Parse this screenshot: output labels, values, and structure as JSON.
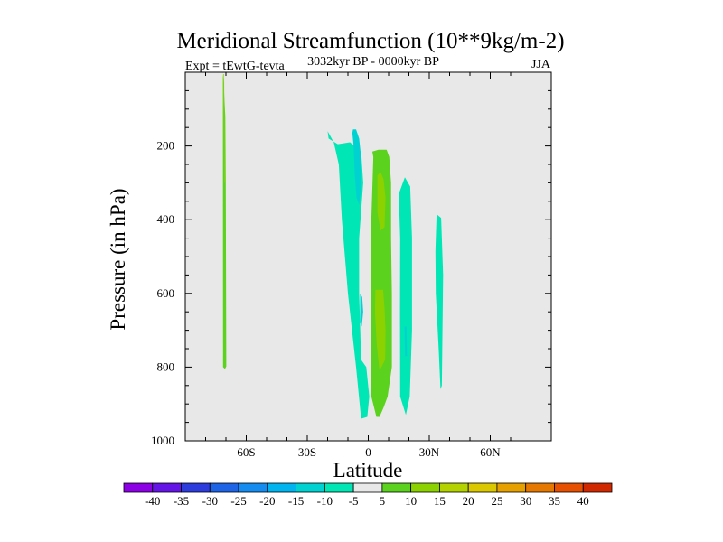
{
  "chart_data": {
    "type": "contour",
    "title": "Meridional Streamfunction (10**9kg/m-2)",
    "subtitle_left": "Expt = tEwtG-tevta",
    "subtitle_center": "3032kyr BP - 0000kyr BP",
    "subtitle_right": "JJA",
    "xlabel": "Latitude",
    "ylabel": "Pressure (in hPa)",
    "xlim": [
      -90,
      90
    ],
    "ylim": [
      1000,
      0
    ],
    "x_ticks": [
      {
        "value": -60,
        "label": "60S"
      },
      {
        "value": -30,
        "label": "30S"
      },
      {
        "value": 0,
        "label": "0"
      },
      {
        "value": 30,
        "label": "30N"
      },
      {
        "value": 60,
        "label": "60N"
      }
    ],
    "y_ticks": [
      {
        "value": 200,
        "label": "200"
      },
      {
        "value": 400,
        "label": "400"
      },
      {
        "value": 600,
        "label": "600"
      },
      {
        "value": 800,
        "label": "800"
      },
      {
        "value": 1000,
        "label": "1000"
      }
    ],
    "colorbar": {
      "labels": [
        "-40",
        "-35",
        "-30",
        "-25",
        "-20",
        "-15",
        "-10",
        "-5",
        "5",
        "10",
        "15",
        "20",
        "25",
        "30",
        "35",
        "40"
      ],
      "colors": [
        "#8c00e6",
        "#6414e6",
        "#2d3cdc",
        "#1e64e6",
        "#148cf0",
        "#00b4f0",
        "#00d2d2",
        "#00e6b4",
        "#e8e8e8",
        "#5ad21e",
        "#8cd200",
        "#b4d200",
        "#dcc800",
        "#e6a000",
        "#e67800",
        "#e65000",
        "#d22800"
      ]
    },
    "background_color": "#e8e8e8",
    "regions": [
      {
        "name": "sh-high-lat-column-outer",
        "level": "5 to 10",
        "color": "#5ad21e",
        "lat": [
          -71.5,
          -71.4,
          -70.5,
          -69.8,
          -70.1,
          -70.3,
          -71.2,
          -71.6
        ],
        "p": [
          0,
          800,
          805,
          798,
          300,
          120,
          20,
          0
        ]
      },
      {
        "name": "sh-high-lat-column-inner",
        "level": "10 to 15",
        "color": "#8cd200",
        "lat": [
          -71.2,
          -70.9,
          -70.6,
          -70.9
        ],
        "p": [
          5,
          300,
          300,
          5
        ]
      },
      {
        "name": "southern-cell-outer",
        "level": "-10 to -5",
        "color": "#00e6b4",
        "lat": [
          -20,
          -19.5,
          -15,
          -9,
          -3.5,
          -2.5,
          -4.5,
          -4.5,
          -3.5,
          -1,
          0.5,
          -0.5,
          -3.5,
          -6,
          -10,
          -13,
          -14.5,
          -17
        ],
        "p": [
          160,
          180,
          195,
          190,
          215,
          300,
          450,
          600,
          780,
          800,
          880,
          935,
          940,
          800,
          600,
          400,
          250,
          190
        ]
      },
      {
        "name": "southern-cell-inner",
        "level": "-15 to -10",
        "color": "#00d2d2",
        "lat": [
          -7.5,
          -6,
          -4.5,
          -3.5,
          -3.8,
          -4.5,
          -5.8,
          -6.6,
          -7.2,
          -7.8
        ],
        "p": [
          155,
          155,
          180,
          230,
          320,
          360,
          340,
          280,
          200,
          165
        ]
      },
      {
        "name": "southern-cell-inner-lower",
        "level": "-15 to -10",
        "color": "#00d2d2",
        "lat": [
          -4,
          -3,
          -2.5,
          -3.2,
          -4
        ],
        "p": [
          600,
          610,
          650,
          690,
          680
        ]
      },
      {
        "name": "equatorial-positive-outer",
        "level": "5 to 10",
        "color": "#5ad21e",
        "lat": [
          2,
          5,
          9,
          10.3,
          11.2,
          11.2,
          11.6,
          11.6,
          9.5,
          7.5,
          5.5,
          4,
          1.5,
          1.5,
          2.5
        ],
        "p": [
          215,
          210,
          210,
          230,
          300,
          450,
          600,
          800,
          880,
          910,
          935,
          935,
          880,
          400,
          230
        ]
      },
      {
        "name": "equatorial-positive-inner-upper",
        "level": "10 to 15",
        "color": "#8cd200",
        "lat": [
          4.5,
          6,
          7.5,
          8.5,
          8,
          6,
          4.5
        ],
        "p": [
          280,
          270,
          290,
          340,
          420,
          430,
          380
        ]
      },
      {
        "name": "equatorial-positive-inner-lower",
        "level": "10 to 15",
        "color": "#8cd200",
        "lat": [
          3.5,
          7.3,
          8,
          8.5,
          8.3,
          5.5,
          4.2,
          3.3
        ],
        "p": [
          590,
          590,
          640,
          700,
          780,
          810,
          740,
          650
        ]
      },
      {
        "name": "northern-negative-cell",
        "level": "-10 to -5",
        "color": "#00e6b4",
        "lat": [
          15,
          18,
          20.6,
          21.5,
          21.5,
          20.4,
          18.5,
          15.7,
          15.6,
          15.7
        ],
        "p": [
          330,
          285,
          310,
          450,
          700,
          880,
          930,
          880,
          650,
          450
        ]
      },
      {
        "name": "northern-negative-cell-inner",
        "level": "-15 to -10",
        "color": "#00d2d2",
        "lat": [
          17.8,
          18.8,
          19,
          18.1
        ],
        "p": [
          690,
          690,
          770,
          770
        ]
      },
      {
        "name": "far-north-cell",
        "level": "-10 to -5",
        "color": "#00e6b4",
        "lat": [
          33,
          33.6,
          35.8,
          36.8,
          36.2,
          35.5,
          34.7,
          33.2
        ],
        "p": [
          485,
          385,
          395,
          550,
          850,
          860,
          760,
          600
        ]
      }
    ]
  }
}
